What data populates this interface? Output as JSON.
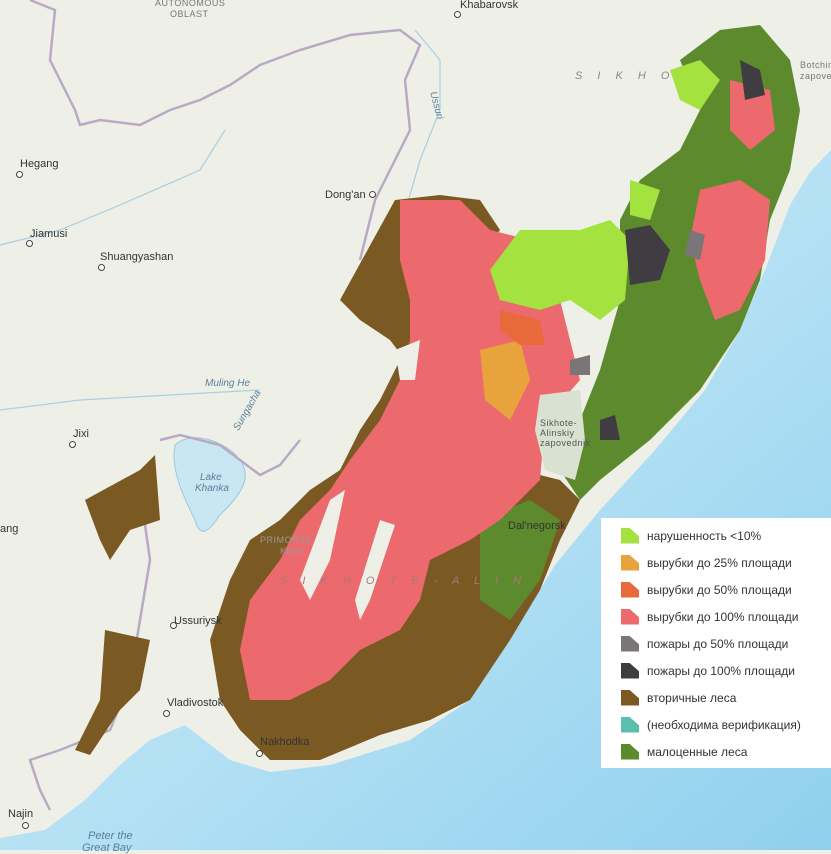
{
  "map": {
    "labels": {
      "autonomous": "AUTONOMOUS",
      "oblast": "OBLAST",
      "khabarovsk": "Khabarovsk",
      "sikhote_north": "S I K H O",
      "botchin1": "Botchin",
      "botchin2": "zapove",
      "ussuri": "Ussuri",
      "hegang": "Hegang",
      "dongan": "Dong'an",
      "jiamusi": "Jiamusi",
      "shuangyashan": "Shuangyashan",
      "muling": "Muling He",
      "sungacha": "Sungacha",
      "jixi": "Jixi",
      "lake1": "Lake",
      "lake2": "Khanka",
      "ang": "ang",
      "zap1": "Sikhote-",
      "zap2": "Alinskiy",
      "zap3": "zapovednik",
      "dalnegorsk": "Dal'negorsk",
      "primorsky1": "PRIMORSK",
      "primorsky2": "KRAI",
      "sikhote_alin": "S I K H O T E - A L I N",
      "ussuriysk": "Ussuriysk",
      "vladivostok": "Vladivostok",
      "nakhodka": "Nakhodka",
      "najin": "Najin",
      "bay1": "Peter the",
      "bay2": "Great Bay"
    },
    "colors": {
      "land": "#eef0e8",
      "sea": "#bfe3f2",
      "lake": "#c9e6f3",
      "border": "#b9a9c4"
    }
  },
  "legend": {
    "items": [
      {
        "label": "нарушенность <10%",
        "color": "#a3e23f"
      },
      {
        "label": "вырубки до 25% площади",
        "color": "#e8a33c"
      },
      {
        "label": "вырубки до 50% площади",
        "color": "#e8693a"
      },
      {
        "label": "вырубки до 100% площади",
        "color": "#ec6a6e"
      },
      {
        "label": "пожары до 50% площади",
        "color": "#7a7678"
      },
      {
        "label": "пожары до 100% площади",
        "color": "#3f3d42"
      },
      {
        "label": "вторичные леса",
        "color": "#7a5a22"
      },
      {
        "label": "(необходима верификация)",
        "color": "#5bbfae"
      },
      {
        "label": "малоценные леса",
        "color": "#5e8a2e"
      }
    ]
  }
}
